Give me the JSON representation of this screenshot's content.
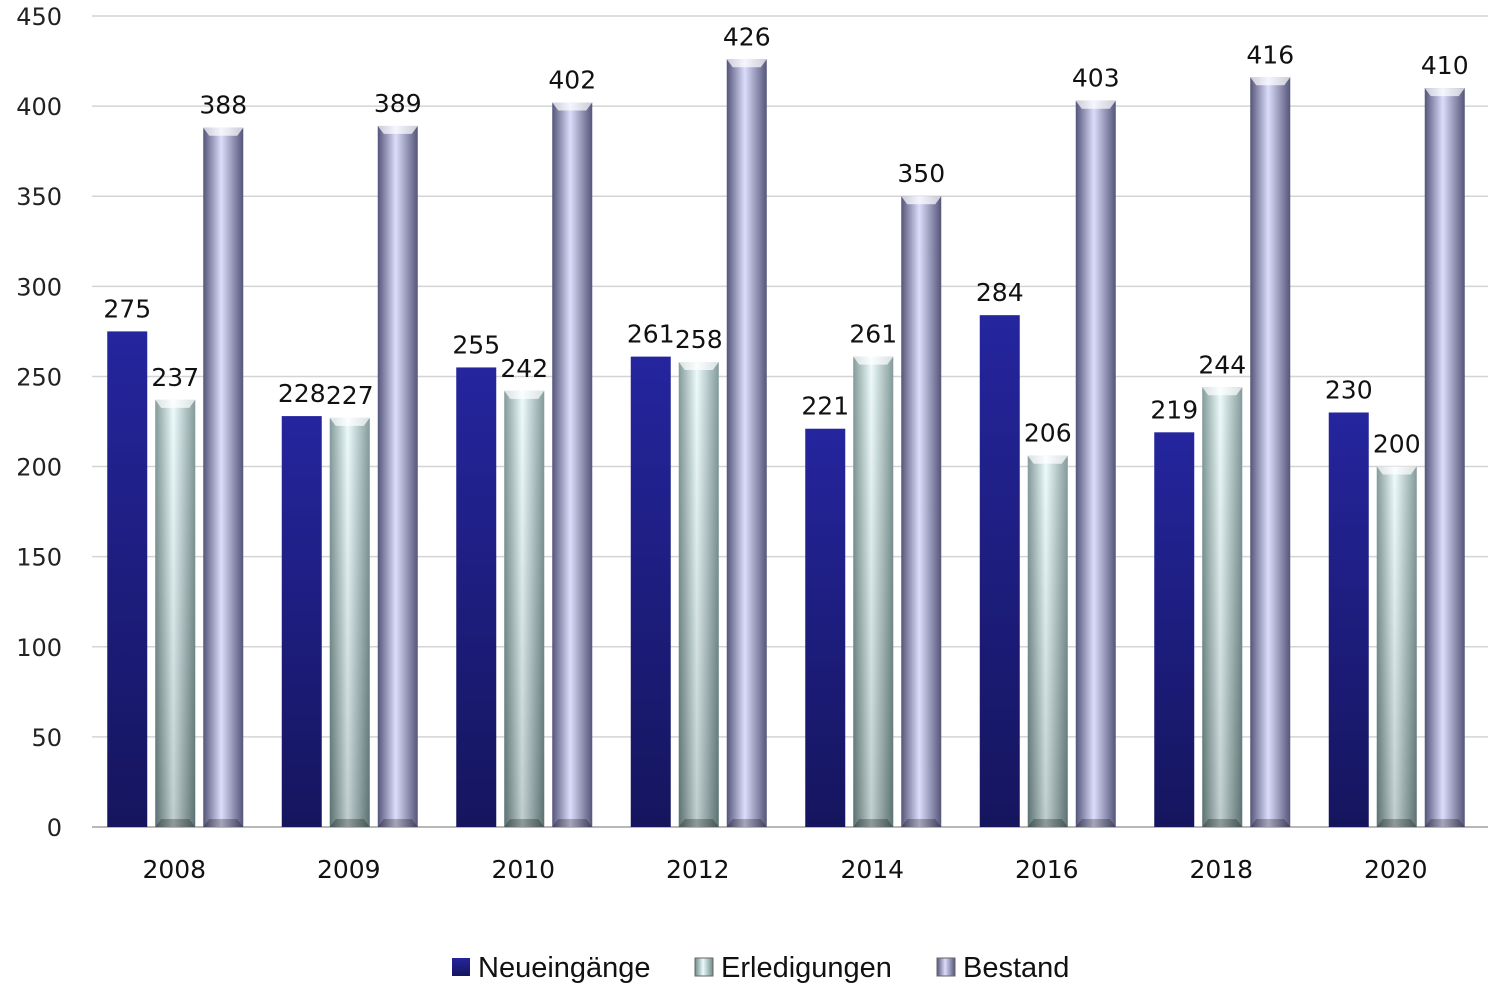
{
  "chart_data": {
    "type": "bar",
    "title": "",
    "xlabel": "",
    "ylabel": "",
    "categories": [
      "2008",
      "2009",
      "2010",
      "2012",
      "2014",
      "2016",
      "2018",
      "2020"
    ],
    "series": [
      {
        "name": "Neueingänge",
        "values": [
          275,
          228,
          255,
          261,
          221,
          284,
          219,
          230
        ],
        "color": "#1f1f8a"
      },
      {
        "name": "Erledigungen",
        "values": [
          237,
          227,
          242,
          258,
          261,
          206,
          244,
          200
        ],
        "color": "#c6e3e3"
      },
      {
        "name": "Bestand",
        "values": [
          388,
          389,
          402,
          426,
          350,
          403,
          416,
          410
        ],
        "color": "#c9c9ef"
      }
    ],
    "ylim": [
      0,
      450
    ],
    "yticks": [
      0,
      50,
      100,
      150,
      200,
      250,
      300,
      350,
      400,
      450
    ],
    "grid": true,
    "legend_position": "bottom",
    "data_labels": true
  }
}
